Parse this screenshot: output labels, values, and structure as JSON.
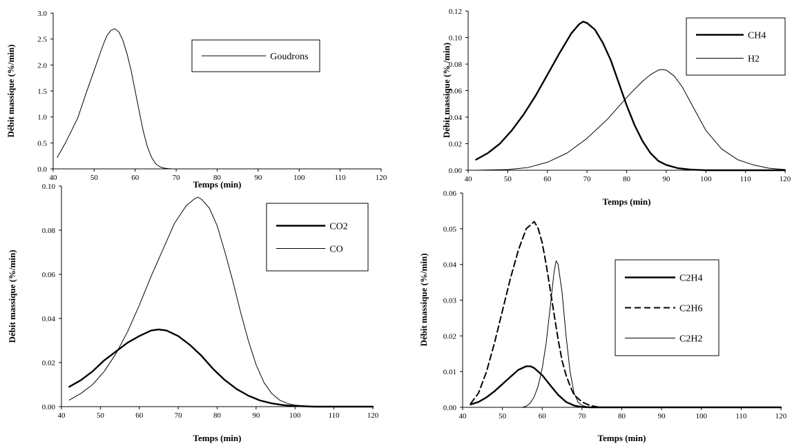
{
  "chart_data": [
    {
      "type": "line",
      "xlabel": "Temps (min)",
      "ylabel": "Débit massique (%/min)",
      "xlim": [
        40,
        120
      ],
      "ylim": [
        0,
        3.0
      ],
      "xticks": [
        "40",
        "50",
        "60",
        "70",
        "80",
        "90",
        "100",
        "110",
        "120"
      ],
      "yticks": [
        "0.0",
        "0.5",
        "1.0",
        "1.5",
        "2.0",
        "2.5",
        "3.0"
      ],
      "legend": "top-right",
      "series": [
        {
          "name": "Goudrons",
          "style": "thin",
          "x": [
            41,
            43,
            46,
            48,
            50,
            52,
            53,
            54,
            55,
            56,
            57,
            58,
            59,
            60,
            61,
            62,
            63,
            64,
            65,
            66,
            67,
            68,
            69,
            70,
            80,
            90,
            100,
            110,
            120
          ],
          "y": [
            0.22,
            0.5,
            0.98,
            1.45,
            1.9,
            2.35,
            2.55,
            2.66,
            2.7,
            2.64,
            2.48,
            2.22,
            1.9,
            1.5,
            1.1,
            0.72,
            0.42,
            0.22,
            0.1,
            0.04,
            0.015,
            0.005,
            0.0,
            0.0,
            0.0,
            0.0,
            0.0,
            0.0,
            0.0
          ]
        }
      ]
    },
    {
      "type": "line",
      "xlabel": "Temps (min)",
      "ylabel": "Débit massique (% /min)",
      "xlim": [
        40,
        120
      ],
      "ylim": [
        0,
        0.12
      ],
      "xticks": [
        "40",
        "50",
        "60",
        "70",
        "80",
        "90",
        "100",
        "110",
        "120"
      ],
      "yticks": [
        "0.00",
        "0.02",
        "0.04",
        "0.06",
        "0.08",
        "0.10",
        "0.12"
      ],
      "legend": "top-right",
      "series": [
        {
          "name": "CH4",
          "style": "thick",
          "x": [
            42,
            45,
            48,
            51,
            54,
            57,
            60,
            63,
            66,
            68,
            69,
            70,
            72,
            74,
            76,
            78,
            80,
            82,
            84,
            86,
            88,
            90,
            93,
            96,
            100,
            110,
            120
          ],
          "y": [
            0.008,
            0.013,
            0.02,
            0.03,
            0.042,
            0.056,
            0.072,
            0.088,
            0.103,
            0.11,
            0.112,
            0.111,
            0.106,
            0.096,
            0.083,
            0.066,
            0.049,
            0.034,
            0.022,
            0.013,
            0.007,
            0.004,
            0.0015,
            0.0005,
            0.0,
            0.0,
            0.0
          ]
        },
        {
          "name": "H2",
          "style": "thin",
          "x": [
            42,
            50,
            55,
            60,
            65,
            70,
            75,
            78,
            81,
            84,
            86,
            88,
            89,
            90,
            92,
            94,
            96,
            98,
            100,
            104,
            108,
            112,
            116,
            120
          ],
          "y": [
            0.0,
            0.0005,
            0.002,
            0.006,
            0.013,
            0.024,
            0.038,
            0.048,
            0.058,
            0.067,
            0.072,
            0.0755,
            0.076,
            0.0755,
            0.071,
            0.063,
            0.052,
            0.041,
            0.03,
            0.016,
            0.008,
            0.004,
            0.0015,
            0.0005
          ]
        }
      ]
    },
    {
      "type": "line",
      "xlabel": "Temps (min)",
      "ylabel": "Débit massique (%/min)",
      "xlim": [
        40,
        120
      ],
      "ylim": [
        0,
        0.1
      ],
      "xticks": [
        "40",
        "50",
        "60",
        "70",
        "80",
        "90",
        "100",
        "110",
        "120"
      ],
      "yticks": [
        "0.00",
        "0.02",
        "0.04",
        "0.06",
        "0.08",
        "0.10"
      ],
      "legend": "top-right",
      "series": [
        {
          "name": "CO2",
          "style": "thick",
          "x": [
            42,
            45,
            48,
            51,
            54,
            57,
            60,
            63,
            65,
            67,
            70,
            73,
            76,
            79,
            82,
            85,
            88,
            91,
            94,
            97,
            100,
            105,
            110,
            120
          ],
          "y": [
            0.009,
            0.012,
            0.016,
            0.021,
            0.025,
            0.029,
            0.032,
            0.0345,
            0.035,
            0.0345,
            0.032,
            0.028,
            0.023,
            0.017,
            0.012,
            0.008,
            0.005,
            0.0028,
            0.0015,
            0.0007,
            0.0003,
            0.0,
            0.0,
            0.0
          ]
        },
        {
          "name": "CO",
          "style": "thin",
          "x": [
            42,
            45,
            48,
            51,
            54,
            57,
            60,
            63,
            66,
            69,
            72,
            74,
            75,
            76,
            78,
            80,
            82,
            84,
            86,
            88,
            90,
            92,
            94,
            96,
            98,
            100,
            105,
            110,
            120
          ],
          "y": [
            0.003,
            0.006,
            0.01,
            0.016,
            0.024,
            0.034,
            0.046,
            0.059,
            0.071,
            0.083,
            0.091,
            0.094,
            0.095,
            0.094,
            0.09,
            0.082,
            0.07,
            0.057,
            0.043,
            0.03,
            0.019,
            0.011,
            0.006,
            0.003,
            0.0015,
            0.0007,
            0.0,
            0.0,
            0.0
          ]
        }
      ]
    },
    {
      "type": "line",
      "xlabel": "Temps (min)",
      "ylabel": "Débit massique (%/min)",
      "xlim": [
        40,
        120
      ],
      "ylim": [
        0,
        0.06
      ],
      "xticks": [
        "40",
        "50",
        "60",
        "70",
        "80",
        "90",
        "100",
        "110",
        "120"
      ],
      "yticks": [
        "0.00",
        "0.01",
        "0.02",
        "0.03",
        "0.04",
        "0.05",
        "0.06"
      ],
      "legend": "top-right",
      "series": [
        {
          "name": "C2H4",
          "style": "thick",
          "x": [
            42,
            44,
            46,
            48,
            50,
            52,
            54,
            56,
            57,
            58,
            60,
            62,
            64,
            66,
            68,
            70,
            72,
            80,
            120
          ],
          "y": [
            0.0008,
            0.0015,
            0.0028,
            0.0045,
            0.0065,
            0.0085,
            0.0105,
            0.0115,
            0.0115,
            0.011,
            0.009,
            0.0062,
            0.0035,
            0.0015,
            0.0005,
            0.0001,
            0.0,
            0.0,
            0.0
          ]
        },
        {
          "name": "C2H6",
          "style": "dashed",
          "x": [
            42,
            44,
            46,
            48,
            50,
            52,
            54,
            56,
            57,
            58,
            59,
            60,
            61,
            62,
            63,
            64,
            65,
            66,
            67,
            68,
            70,
            72,
            74,
            75,
            80,
            120
          ],
          "y": [
            0.001,
            0.004,
            0.01,
            0.018,
            0.027,
            0.036,
            0.044,
            0.05,
            0.051,
            0.052,
            0.05,
            0.046,
            0.04,
            0.033,
            0.026,
            0.019,
            0.013,
            0.009,
            0.006,
            0.0035,
            0.0015,
            0.0005,
            0.0001,
            0.0,
            0.0,
            0.0
          ]
        },
        {
          "name": "C2H2",
          "style": "thin",
          "x": [
            42,
            55,
            56,
            57,
            58,
            59,
            60,
            61,
            62,
            63,
            63.5,
            64,
            65,
            66,
            67,
            68,
            69,
            70,
            72,
            80,
            120
          ],
          "y": [
            0.0,
            0.0,
            0.0003,
            0.0012,
            0.003,
            0.006,
            0.011,
            0.018,
            0.028,
            0.038,
            0.041,
            0.04,
            0.032,
            0.02,
            0.01,
            0.004,
            0.0015,
            0.0005,
            0.0,
            0.0,
            0.0
          ]
        }
      ]
    }
  ]
}
